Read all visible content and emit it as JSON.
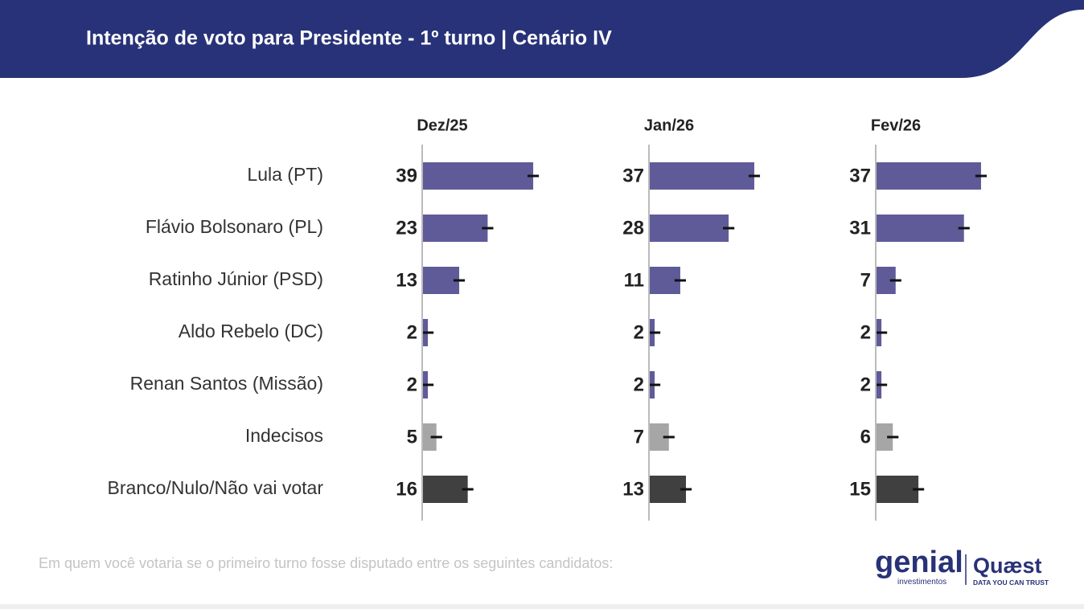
{
  "header": {
    "title": "Intenção de voto para Presidente - 1º turno | Cenário IV"
  },
  "chart_data": {
    "type": "bar",
    "orientation": "horizontal",
    "categories": [
      "Lula (PT)",
      "Flávio Bolsonaro (PL)",
      "Ratinho Júnior (PSD)",
      "Aldo Rebelo (DC)",
      "Renan Santos (Missão)",
      "Indecisos",
      "Branco/Nulo/Não vai votar"
    ],
    "colors": [
      "#5f5b99",
      "#5f5b99",
      "#5f5b99",
      "#5f5b99",
      "#5f5b99",
      "#a6a6a6",
      "#404040"
    ],
    "series": [
      {
        "name": "Dez/25",
        "values": [
          39,
          23,
          13,
          2,
          2,
          5,
          16
        ]
      },
      {
        "name": "Jan/26",
        "values": [
          37,
          28,
          11,
          2,
          2,
          7,
          13
        ]
      },
      {
        "name": "Fev/26",
        "values": [
          37,
          31,
          7,
          2,
          2,
          6,
          15
        ]
      }
    ],
    "error": 2,
    "xlim": [
      0,
      50
    ]
  },
  "footer": {
    "note": "Em quem você votaria se o primeiro turno fosse disputado entre os seguintes candidatos:",
    "brand": {
      "genial": "genial",
      "genial_sub": "investimentos",
      "quaest": "Quæst",
      "quaest_sub": "DATA YOU CAN TRUST"
    }
  }
}
